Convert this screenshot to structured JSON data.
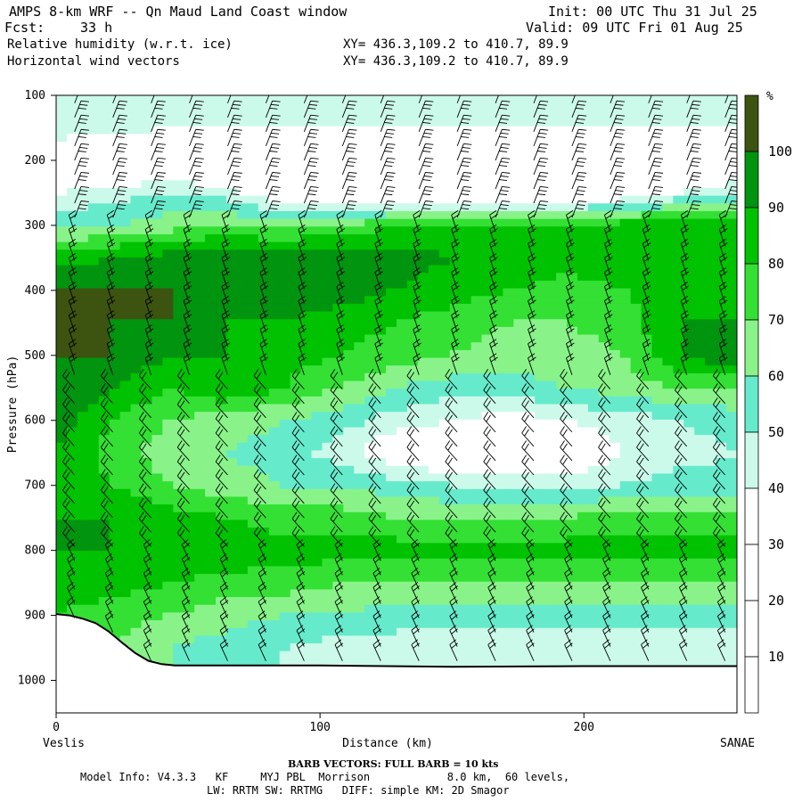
{
  "header": {
    "title": "AMPS 8-km WRF -- Qn Maud Land Coast window",
    "init": "Init: 00 UTC Thu 31 Jul 25",
    "fcst_label": "Fcst:",
    "fcst_value": "33 h",
    "valid": "Valid: 09 UTC Fri 01 Aug 25",
    "field1": "Relative humidity (w.r.t. ice)",
    "field2": "Horizontal wind vectors",
    "xy1": "XY= 436.3,109.2 to 410.7, 89.9",
    "xy2": "XY= 436.3,109.2 to 410.7, 89.9"
  },
  "footer": {
    "barb_note": "BARB VECTORS:  FULL BARB = 10 kts",
    "model_info": "Model Info: V4.3.3   KF     MYJ PBL  Morrison            8.0 km,  60 levels,",
    "model_info2": "LW: RRTM SW: RRTMG   DIFF: simple KM: 2D Smagor"
  },
  "chart_data": {
    "type": "heatmap",
    "title": "Relative humidity (w.r.t. ice)",
    "xlabel": "Distance (km)",
    "ylabel": "Pressure (hPa)",
    "x_start_label": "Veslis",
    "x_end_label": "SANAE",
    "xlim": [
      0,
      258
    ],
    "ylim": [
      1050,
      100
    ],
    "x_ticks": [
      0,
      100,
      200
    ],
    "y_ticks": [
      100,
      200,
      300,
      400,
      500,
      600,
      700,
      800,
      900,
      1000
    ],
    "colorbar": {
      "unit": "%",
      "levels": [
        10,
        20,
        30,
        40,
        50,
        60,
        70,
        80,
        90,
        100
      ],
      "colors": [
        "#ffffff",
        "#ffffff",
        "#ffffff",
        "#ccfaea",
        "#66eacc",
        "#89f389",
        "#33e033",
        "#00c200",
        "#00940f",
        "#3c5410"
      ]
    },
    "terrain_surface": [
      {
        "x": 0,
        "p": 898
      },
      {
        "x": 5,
        "p": 900
      },
      {
        "x": 10,
        "p": 905
      },
      {
        "x": 15,
        "p": 912
      },
      {
        "x": 20,
        "p": 925
      },
      {
        "x": 25,
        "p": 942
      },
      {
        "x": 30,
        "p": 958
      },
      {
        "x": 35,
        "p": 970
      },
      {
        "x": 40,
        "p": 975
      },
      {
        "x": 45,
        "p": 977
      },
      {
        "x": 60,
        "p": 977
      },
      {
        "x": 100,
        "p": 977
      },
      {
        "x": 150,
        "p": 979
      },
      {
        "x": 200,
        "p": 978
      },
      {
        "x": 258,
        "p": 978
      }
    ],
    "rh_levels": [
      {
        "p": 100,
        "values": [
          40,
          40,
          40,
          40,
          40,
          40,
          40,
          40,
          40,
          40,
          40,
          40,
          40
        ]
      },
      {
        "p": 150,
        "values": [
          50,
          45,
          40,
          40,
          40,
          40,
          40,
          40,
          40,
          40,
          40,
          40,
          40
        ]
      },
      {
        "p": 200,
        "values": [
          20,
          20,
          20,
          20,
          20,
          20,
          20,
          20,
          20,
          20,
          20,
          20,
          20
        ]
      },
      {
        "p": 250,
        "values": [
          40,
          45,
          50,
          45,
          30,
          20,
          20,
          20,
          20,
          20,
          30,
          40,
          50
        ]
      },
      {
        "p": 300,
        "values": [
          55,
          60,
          65,
          70,
          65,
          70,
          80,
          85,
          80,
          80,
          85,
          90,
          90
        ]
      },
      {
        "p": 350,
        "values": [
          85,
          90,
          95,
          100,
          100,
          100,
          95,
          90,
          90,
          85,
          85,
          85,
          85
        ]
      },
      {
        "p": 400,
        "values": [
          100,
          100,
          100,
          100,
          95,
          95,
          90,
          85,
          80,
          75,
          80,
          85,
          90
        ]
      },
      {
        "p": 450,
        "values": [
          100,
          100,
          100,
          90,
          90,
          85,
          80,
          75,
          70,
          70,
          75,
          90,
          90
        ]
      },
      {
        "p": 500,
        "values": [
          100,
          100,
          90,
          90,
          85,
          80,
          75,
          70,
          65,
          65,
          70,
          90,
          100
        ]
      },
      {
        "p": 550,
        "values": [
          100,
          90,
          80,
          90,
          80,
          70,
          60,
          55,
          55,
          60,
          65,
          70,
          70
        ]
      },
      {
        "p": 600,
        "values": [
          95,
          80,
          70,
          65,
          60,
          55,
          45,
          40,
          35,
          40,
          45,
          50,
          55
        ]
      },
      {
        "p": 650,
        "values": [
          90,
          75,
          65,
          60,
          55,
          45,
          30,
          25,
          25,
          30,
          40,
          45,
          50
        ]
      },
      {
        "p": 700,
        "values": [
          90,
          80,
          70,
          65,
          60,
          60,
          55,
          50,
          45,
          45,
          50,
          55,
          55
        ]
      },
      {
        "p": 750,
        "values": [
          90,
          90,
          85,
          80,
          75,
          75,
          70,
          70,
          70,
          70,
          75,
          75,
          75
        ]
      },
      {
        "p": 800,
        "values": [
          90,
          90,
          90,
          90,
          85,
          85,
          85,
          85,
          85,
          85,
          85,
          85,
          85
        ]
      },
      {
        "p": 850,
        "values": [
          85,
          85,
          80,
          75,
          75,
          70,
          70,
          70,
          70,
          70,
          70,
          70,
          70
        ]
      },
      {
        "p": 900,
        "values": [
          80,
          75,
          70,
          65,
          60,
          60,
          55,
          55,
          55,
          55,
          55,
          55,
          55
        ]
      },
      {
        "p": 950,
        "values": [
          75,
          70,
          60,
          55,
          50,
          45,
          45,
          45,
          40,
          40,
          40,
          40,
          40
        ]
      }
    ],
    "rh_x": [
      0,
      21,
      43,
      64,
      86,
      107,
      129,
      150,
      172,
      193,
      215,
      236,
      258
    ]
  }
}
